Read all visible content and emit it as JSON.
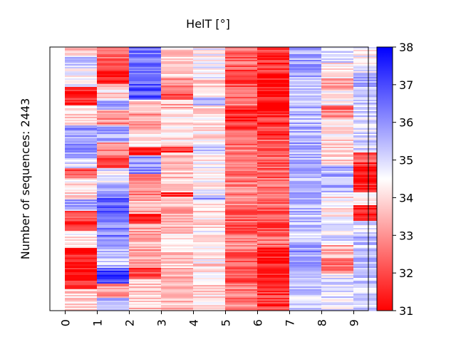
{
  "chart_data": {
    "type": "heatmap",
    "title": "HelT [°]",
    "ylabel": "Number of sequences: 2443",
    "xlabel": "",
    "x_ticks": [
      "0",
      "1",
      "2",
      "3",
      "4",
      "5",
      "6",
      "7",
      "8",
      "9"
    ],
    "colorbar": {
      "min": 31,
      "max": 38,
      "ticks": [
        "31",
        "32",
        "33",
        "34",
        "35",
        "36",
        "37",
        "38"
      ],
      "colormap": "bwr_reversed",
      "low_color": "#ff0000",
      "mid_color": "#ffffff",
      "high_color": "#0000ff"
    },
    "rows": 2443,
    "column_bands": [
      [
        [
          0,
          0.03,
          33.4
        ],
        [
          0.03,
          0.08,
          35.2
        ],
        [
          0.08,
          0.15,
          34.5
        ],
        [
          0.15,
          0.22,
          31.5
        ],
        [
          0.22,
          0.3,
          34.0
        ],
        [
          0.3,
          0.42,
          36.0
        ],
        [
          0.42,
          0.46,
          34.8
        ],
        [
          0.46,
          0.5,
          32.3
        ],
        [
          0.5,
          0.58,
          34.0
        ],
        [
          0.58,
          0.62,
          35.8
        ],
        [
          0.62,
          0.7,
          31.8
        ],
        [
          0.7,
          0.76,
          34.2
        ],
        [
          0.76,
          0.86,
          31.3
        ],
        [
          0.86,
          0.92,
          31.7
        ],
        [
          0.92,
          1.0,
          33.8
        ]
      ],
      [
        [
          0,
          0.06,
          32.5
        ],
        [
          0.06,
          0.09,
          32.0
        ],
        [
          0.09,
          0.14,
          31.2
        ],
        [
          0.14,
          0.2,
          34.0
        ],
        [
          0.2,
          0.24,
          35.5
        ],
        [
          0.24,
          0.3,
          33.0
        ],
        [
          0.3,
          0.36,
          35.6
        ],
        [
          0.36,
          0.42,
          32.8
        ],
        [
          0.42,
          0.46,
          32.1
        ],
        [
          0.46,
          0.52,
          34.8
        ],
        [
          0.52,
          0.56,
          35.8
        ],
        [
          0.56,
          0.64,
          36.5
        ],
        [
          0.64,
          0.72,
          36.2
        ],
        [
          0.72,
          0.78,
          35.4
        ],
        [
          0.78,
          0.84,
          35.2
        ],
        [
          0.84,
          0.9,
          37.0
        ],
        [
          0.9,
          0.95,
          33.2
        ],
        [
          0.95,
          1.0,
          35.8
        ]
      ],
      [
        [
          0,
          0.1,
          36.5
        ],
        [
          0.1,
          0.2,
          36.8
        ],
        [
          0.2,
          0.25,
          33.8
        ],
        [
          0.25,
          0.32,
          33.2
        ],
        [
          0.32,
          0.38,
          33.9
        ],
        [
          0.38,
          0.41,
          31.3
        ],
        [
          0.41,
          0.48,
          36.0
        ],
        [
          0.48,
          0.56,
          32.8
        ],
        [
          0.56,
          0.63,
          33.4
        ],
        [
          0.63,
          0.67,
          31.8
        ],
        [
          0.67,
          0.75,
          33.5
        ],
        [
          0.75,
          0.84,
          33.2
        ],
        [
          0.84,
          0.88,
          32.0
        ],
        [
          0.88,
          1.0,
          33.8
        ]
      ],
      [
        [
          0,
          0.12,
          33.8
        ],
        [
          0.12,
          0.16,
          33.0
        ],
        [
          0.16,
          0.2,
          32.0
        ],
        [
          0.2,
          0.24,
          33.5
        ],
        [
          0.24,
          0.38,
          34.0
        ],
        [
          0.38,
          0.4,
          31.4
        ],
        [
          0.4,
          0.55,
          33.7
        ],
        [
          0.55,
          0.57,
          31.4
        ],
        [
          0.57,
          0.7,
          33.4
        ],
        [
          0.7,
          0.84,
          33.9
        ],
        [
          0.84,
          1.0,
          33.6
        ]
      ],
      [
        [
          0,
          0.12,
          34.6
        ],
        [
          0.12,
          0.19,
          33.9
        ],
        [
          0.19,
          0.22,
          36.0
        ],
        [
          0.22,
          0.36,
          34.2
        ],
        [
          0.36,
          0.41,
          35.0
        ],
        [
          0.41,
          0.56,
          34.4
        ],
        [
          0.56,
          0.58,
          36.0
        ],
        [
          0.58,
          0.7,
          34.1
        ],
        [
          0.7,
          0.82,
          34.4
        ],
        [
          0.82,
          1.0,
          34.0
        ]
      ],
      [
        [
          0,
          0.08,
          32.4
        ],
        [
          0.08,
          0.15,
          32.0
        ],
        [
          0.15,
          0.22,
          32.6
        ],
        [
          0.22,
          0.32,
          31.7
        ],
        [
          0.32,
          0.5,
          32.6
        ],
        [
          0.5,
          0.6,
          32.8
        ],
        [
          0.6,
          0.72,
          32.3
        ],
        [
          0.72,
          0.78,
          32.9
        ],
        [
          0.78,
          0.9,
          32.1
        ],
        [
          0.9,
          1.0,
          32.7
        ]
      ],
      [
        [
          0,
          0.1,
          31.6
        ],
        [
          0.1,
          0.25,
          31.2
        ],
        [
          0.25,
          0.35,
          31.8
        ],
        [
          0.35,
          0.5,
          32.3
        ],
        [
          0.5,
          0.6,
          32.5
        ],
        [
          0.6,
          0.7,
          32.1
        ],
        [
          0.7,
          0.76,
          32.6
        ],
        [
          0.76,
          0.86,
          31.3
        ],
        [
          0.86,
          1.0,
          31.8
        ]
      ],
      [
        [
          0,
          0.12,
          35.6
        ],
        [
          0.12,
          0.3,
          35.4
        ],
        [
          0.3,
          0.45,
          35.6
        ],
        [
          0.45,
          0.6,
          35.5
        ],
        [
          0.6,
          0.75,
          35.3
        ],
        [
          0.75,
          0.82,
          35.8
        ],
        [
          0.82,
          0.88,
          35.4
        ],
        [
          0.88,
          1.0,
          35.2
        ]
      ],
      [
        [
          0,
          0.06,
          34.9
        ],
        [
          0.06,
          0.12,
          34.3
        ],
        [
          0.12,
          0.16,
          33.0
        ],
        [
          0.16,
          0.22,
          34.4
        ],
        [
          0.22,
          0.27,
          32.6
        ],
        [
          0.27,
          0.35,
          34.3
        ],
        [
          0.35,
          0.45,
          34.0
        ],
        [
          0.45,
          0.55,
          35.6
        ],
        [
          0.55,
          0.65,
          34.2
        ],
        [
          0.65,
          0.75,
          34.8
        ],
        [
          0.75,
          0.8,
          33.4
        ],
        [
          0.8,
          0.86,
          32.7
        ],
        [
          0.86,
          1.0,
          34.9
        ]
      ],
      [
        [
          0,
          0.1,
          34.6
        ],
        [
          0.1,
          0.2,
          35.4
        ],
        [
          0.2,
          0.4,
          35.0
        ],
        [
          0.4,
          0.44,
          32.2
        ],
        [
          0.44,
          0.55,
          31.4
        ],
        [
          0.55,
          0.6,
          34.6
        ],
        [
          0.6,
          0.66,
          31.8
        ],
        [
          0.66,
          0.72,
          34.8
        ],
        [
          0.72,
          0.9,
          35.3
        ],
        [
          0.9,
          1.0,
          35.0
        ]
      ]
    ]
  }
}
